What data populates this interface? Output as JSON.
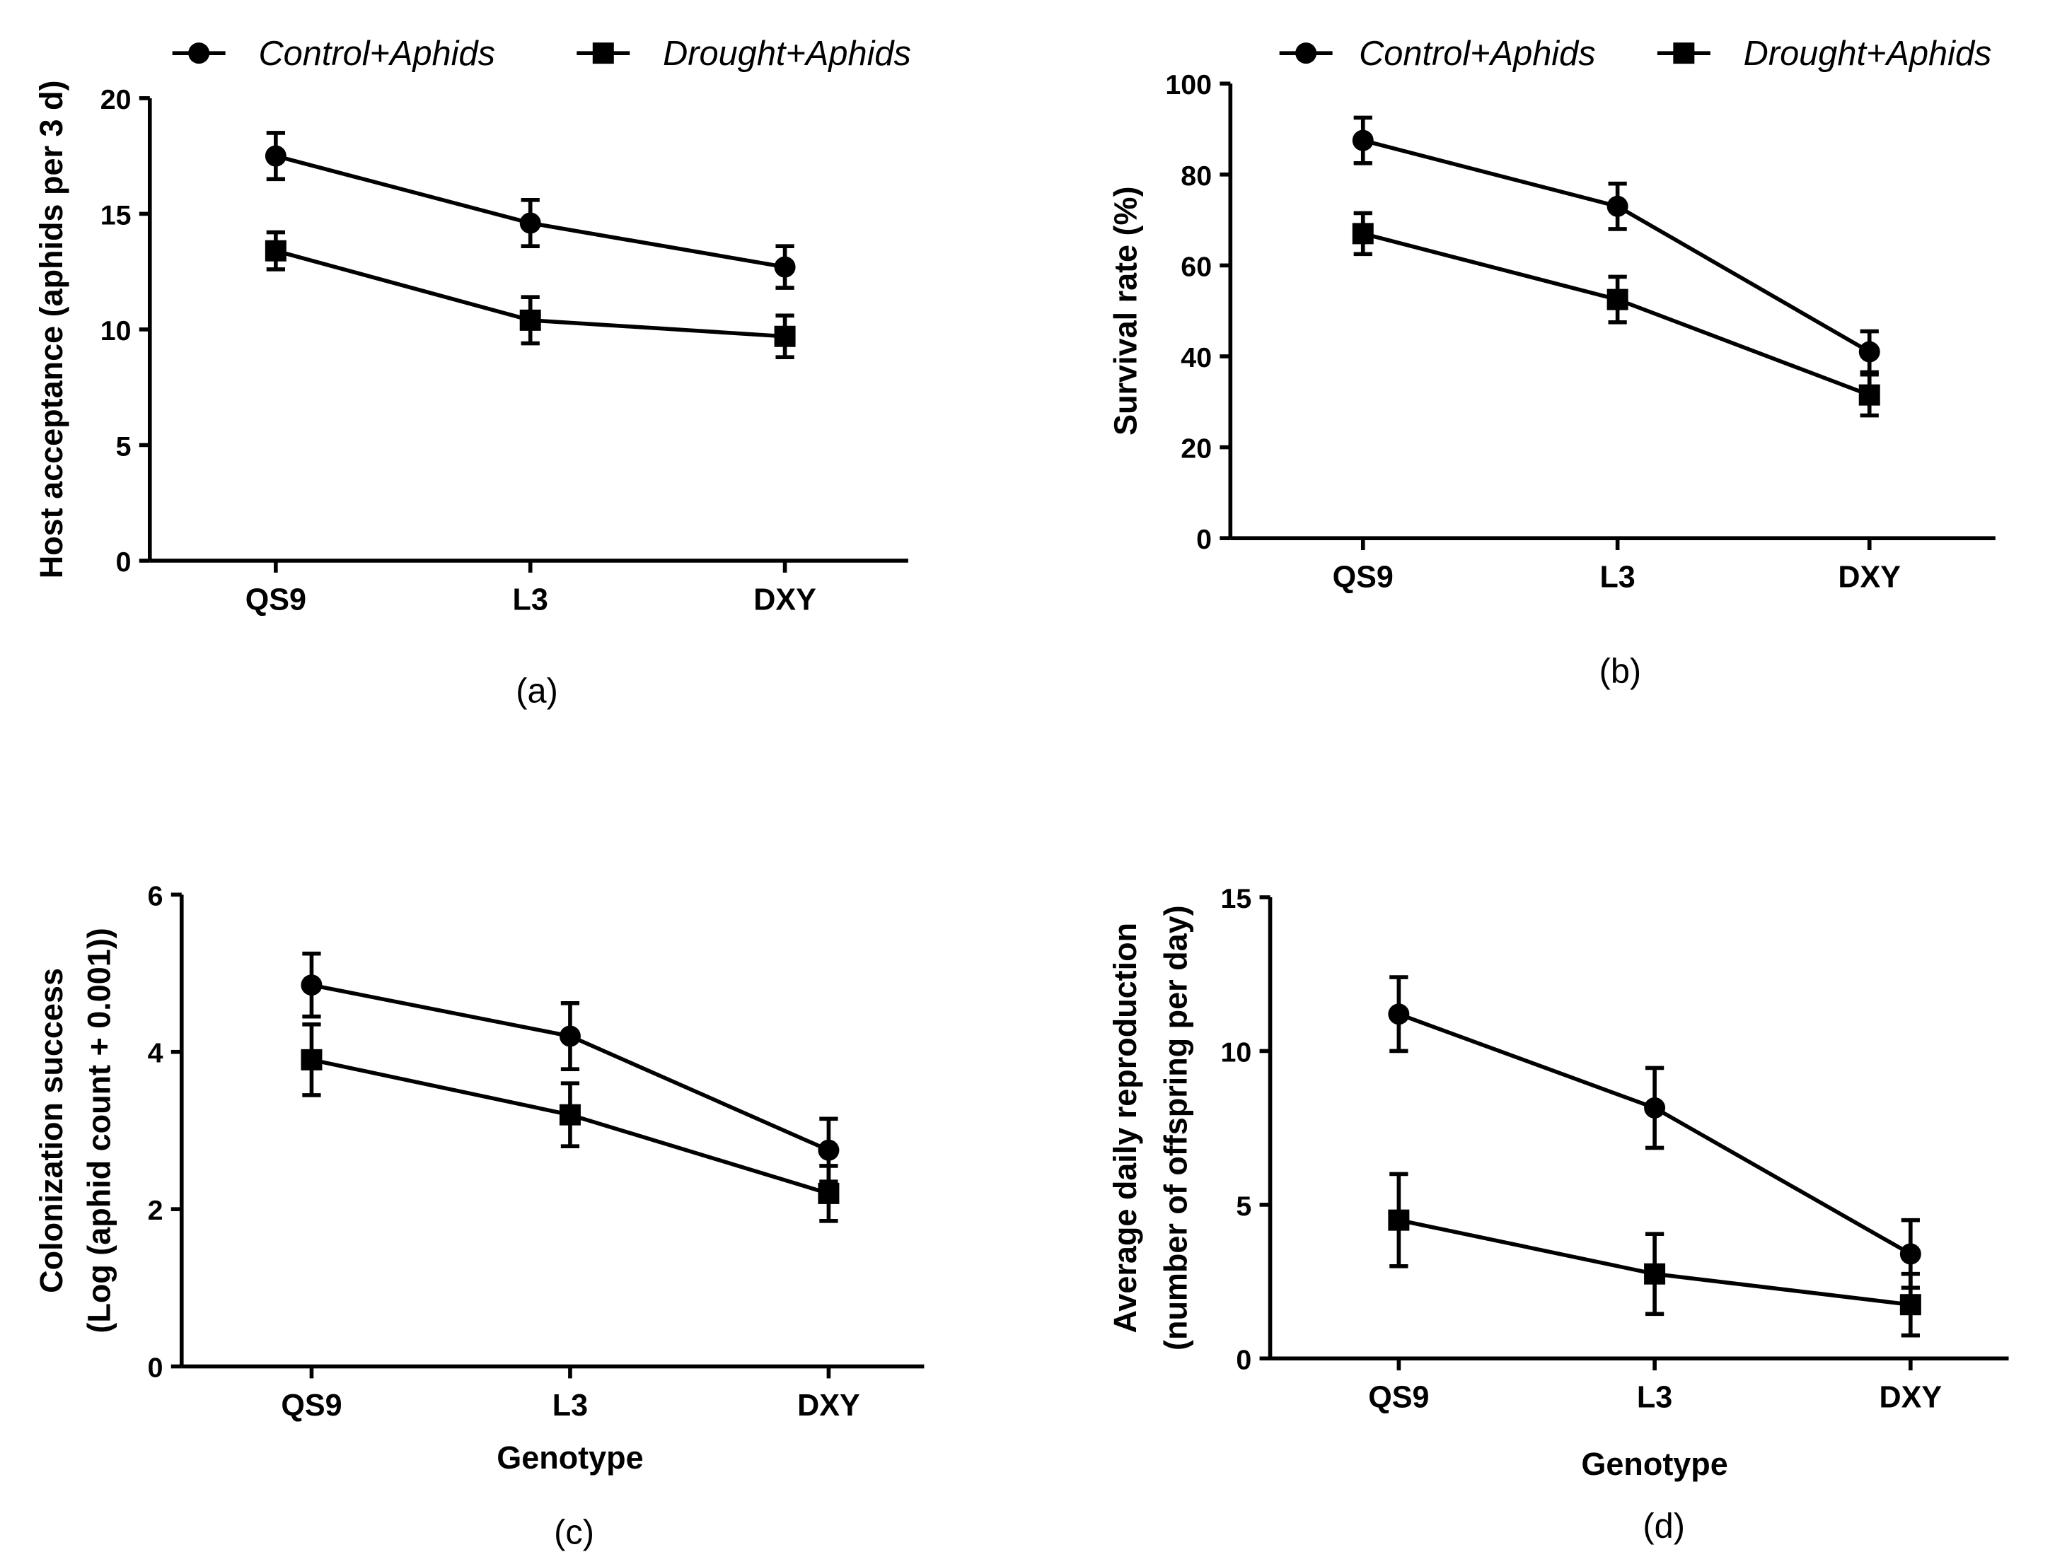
{
  "chart_data": [
    {
      "type": "line",
      "panel": "(a)",
      "ylabel": [
        "Host acceptance (aphids per 3 d)"
      ],
      "xlabel": "",
      "categories": [
        "QS9",
        "L3",
        "DXY"
      ],
      "ylim": [
        0,
        20
      ],
      "yticks": [
        0,
        5,
        10,
        15,
        20
      ],
      "legend": "top",
      "series": [
        {
          "name": "Control+Aphids",
          "marker": "circle",
          "values": [
            17.5,
            14.6,
            12.7
          ],
          "errors": [
            1.0,
            1.0,
            0.9
          ]
        },
        {
          "name": "Drought+Aphids",
          "marker": "square",
          "values": [
            13.4,
            10.4,
            9.7
          ],
          "errors": [
            0.8,
            1.0,
            0.9
          ]
        }
      ]
    },
    {
      "type": "line",
      "panel": "(b)",
      "ylabel": [
        "Survival rate (%)"
      ],
      "xlabel": "",
      "categories": [
        "QS9",
        "L3",
        "DXY"
      ],
      "ylim": [
        0,
        100
      ],
      "yticks": [
        0,
        20,
        40,
        60,
        80,
        100
      ],
      "legend": "top",
      "series": [
        {
          "name": "Control+Aphids",
          "marker": "circle",
          "values": [
            87.5,
            73,
            41
          ],
          "errors": [
            5,
            5,
            4.5
          ]
        },
        {
          "name": "Drought+Aphids",
          "marker": "square",
          "values": [
            67,
            52.5,
            31.5
          ],
          "errors": [
            4.5,
            5,
            4.5
          ]
        }
      ]
    },
    {
      "type": "line",
      "panel": "(c)",
      "ylabel": [
        "Colonization success",
        "(Log (aphid count + 0.001))"
      ],
      "xlabel": "Genotype",
      "categories": [
        "QS9",
        "L3",
        "DXY"
      ],
      "ylim": [
        0,
        6
      ],
      "yticks": [
        0,
        2,
        4,
        6
      ],
      "series": [
        {
          "name": "Control+Aphids",
          "marker": "circle",
          "values": [
            4.85,
            4.2,
            2.75
          ],
          "errors": [
            0.4,
            0.42,
            0.4
          ]
        },
        {
          "name": "Drought+Aphids",
          "marker": "square",
          "values": [
            3.9,
            3.2,
            2.2
          ],
          "errors": [
            0.45,
            0.4,
            0.35
          ]
        }
      ]
    },
    {
      "type": "line",
      "panel": "(d)",
      "ylabel": [
        "Average daily reproduction",
        "(number of offspring per day)"
      ],
      "xlabel": "Genotype",
      "categories": [
        "QS9",
        "L3",
        "DXY"
      ],
      "ylim": [
        0,
        15
      ],
      "yticks": [
        0,
        5,
        10,
        15
      ],
      "series": [
        {
          "name": "Control+Aphids",
          "marker": "circle",
          "values": [
            11.2,
            8.15,
            3.4
          ],
          "errors": [
            1.2,
            1.3,
            1.1
          ]
        },
        {
          "name": "Drought+Aphids",
          "marker": "square",
          "values": [
            4.5,
            2.75,
            1.75
          ],
          "errors": [
            1.5,
            1.3,
            1.0
          ]
        }
      ]
    }
  ]
}
